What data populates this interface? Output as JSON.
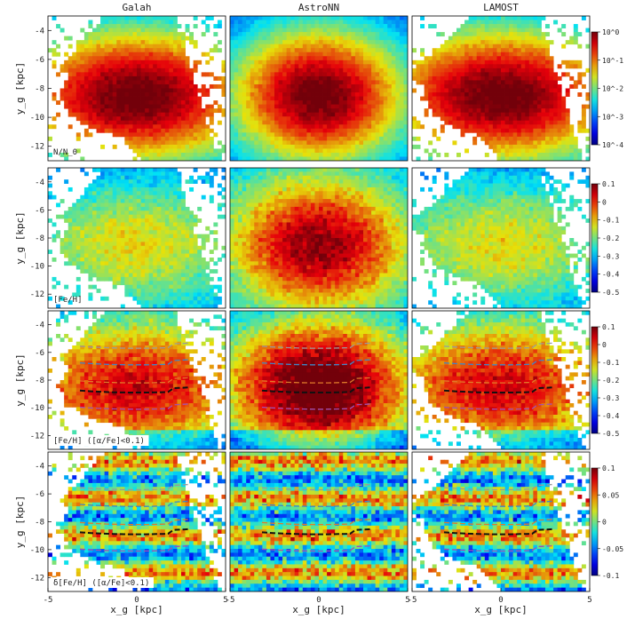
{
  "chart_data": {
    "type": "heatmap",
    "surveys": [
      "Galah",
      "AstroNN",
      "LAMOST"
    ],
    "rows": [
      {
        "label": "N/N_0",
        "colorbar": {
          "scale": "log",
          "ticks": [
            "10^0",
            "10^-1",
            "10^-2",
            "10^-3",
            "10^-4"
          ],
          "range": [
            0.0001,
            1
          ]
        }
      },
      {
        "label": "[Fe/H]",
        "colorbar": {
          "scale": "linear",
          "ticks": [
            "0.1",
            "0",
            "-0.1",
            "-0.2",
            "-0.3",
            "-0.4",
            "-0.5"
          ],
          "range": [
            -0.5,
            0.15
          ]
        }
      },
      {
        "label": "[Fe/H] ([α/Fe]<0.1)",
        "colorbar": {
          "scale": "linear",
          "ticks": [
            "0.1",
            "0",
            "-0.1",
            "-0.2",
            "-0.3",
            "-0.4",
            "-0.5"
          ],
          "range": [
            -0.5,
            0.15
          ]
        }
      },
      {
        "label": "δ[Fe/H] ([α/Fe]<0.1)",
        "colorbar": {
          "scale": "linear",
          "ticks": [
            "0.1",
            "0.05",
            "0",
            "-0.05",
            "-0.1"
          ],
          "range": [
            -0.1,
            0.1
          ]
        }
      }
    ],
    "x_axis": {
      "label": "x_g [kpc]",
      "range": [
        -5,
        5
      ],
      "ticks": [
        "-5",
        "0",
        "5"
      ]
    },
    "y_axis": {
      "label": "y_g [kpc]",
      "range": [
        -13,
        -3
      ],
      "ticks": [
        "-4",
        "-6",
        "-8",
        "-10",
        "-12"
      ]
    },
    "overlay_ridges_y": [
      -5.7,
      -6.9,
      -8.2,
      -8.9,
      -10.1
    ],
    "overlay_ridge_colors": [
      "#9a9a9a",
      "#3f86c6",
      "#e07a2a",
      "#111111",
      "#a24fb0"
    ],
    "colormap": "jet"
  }
}
